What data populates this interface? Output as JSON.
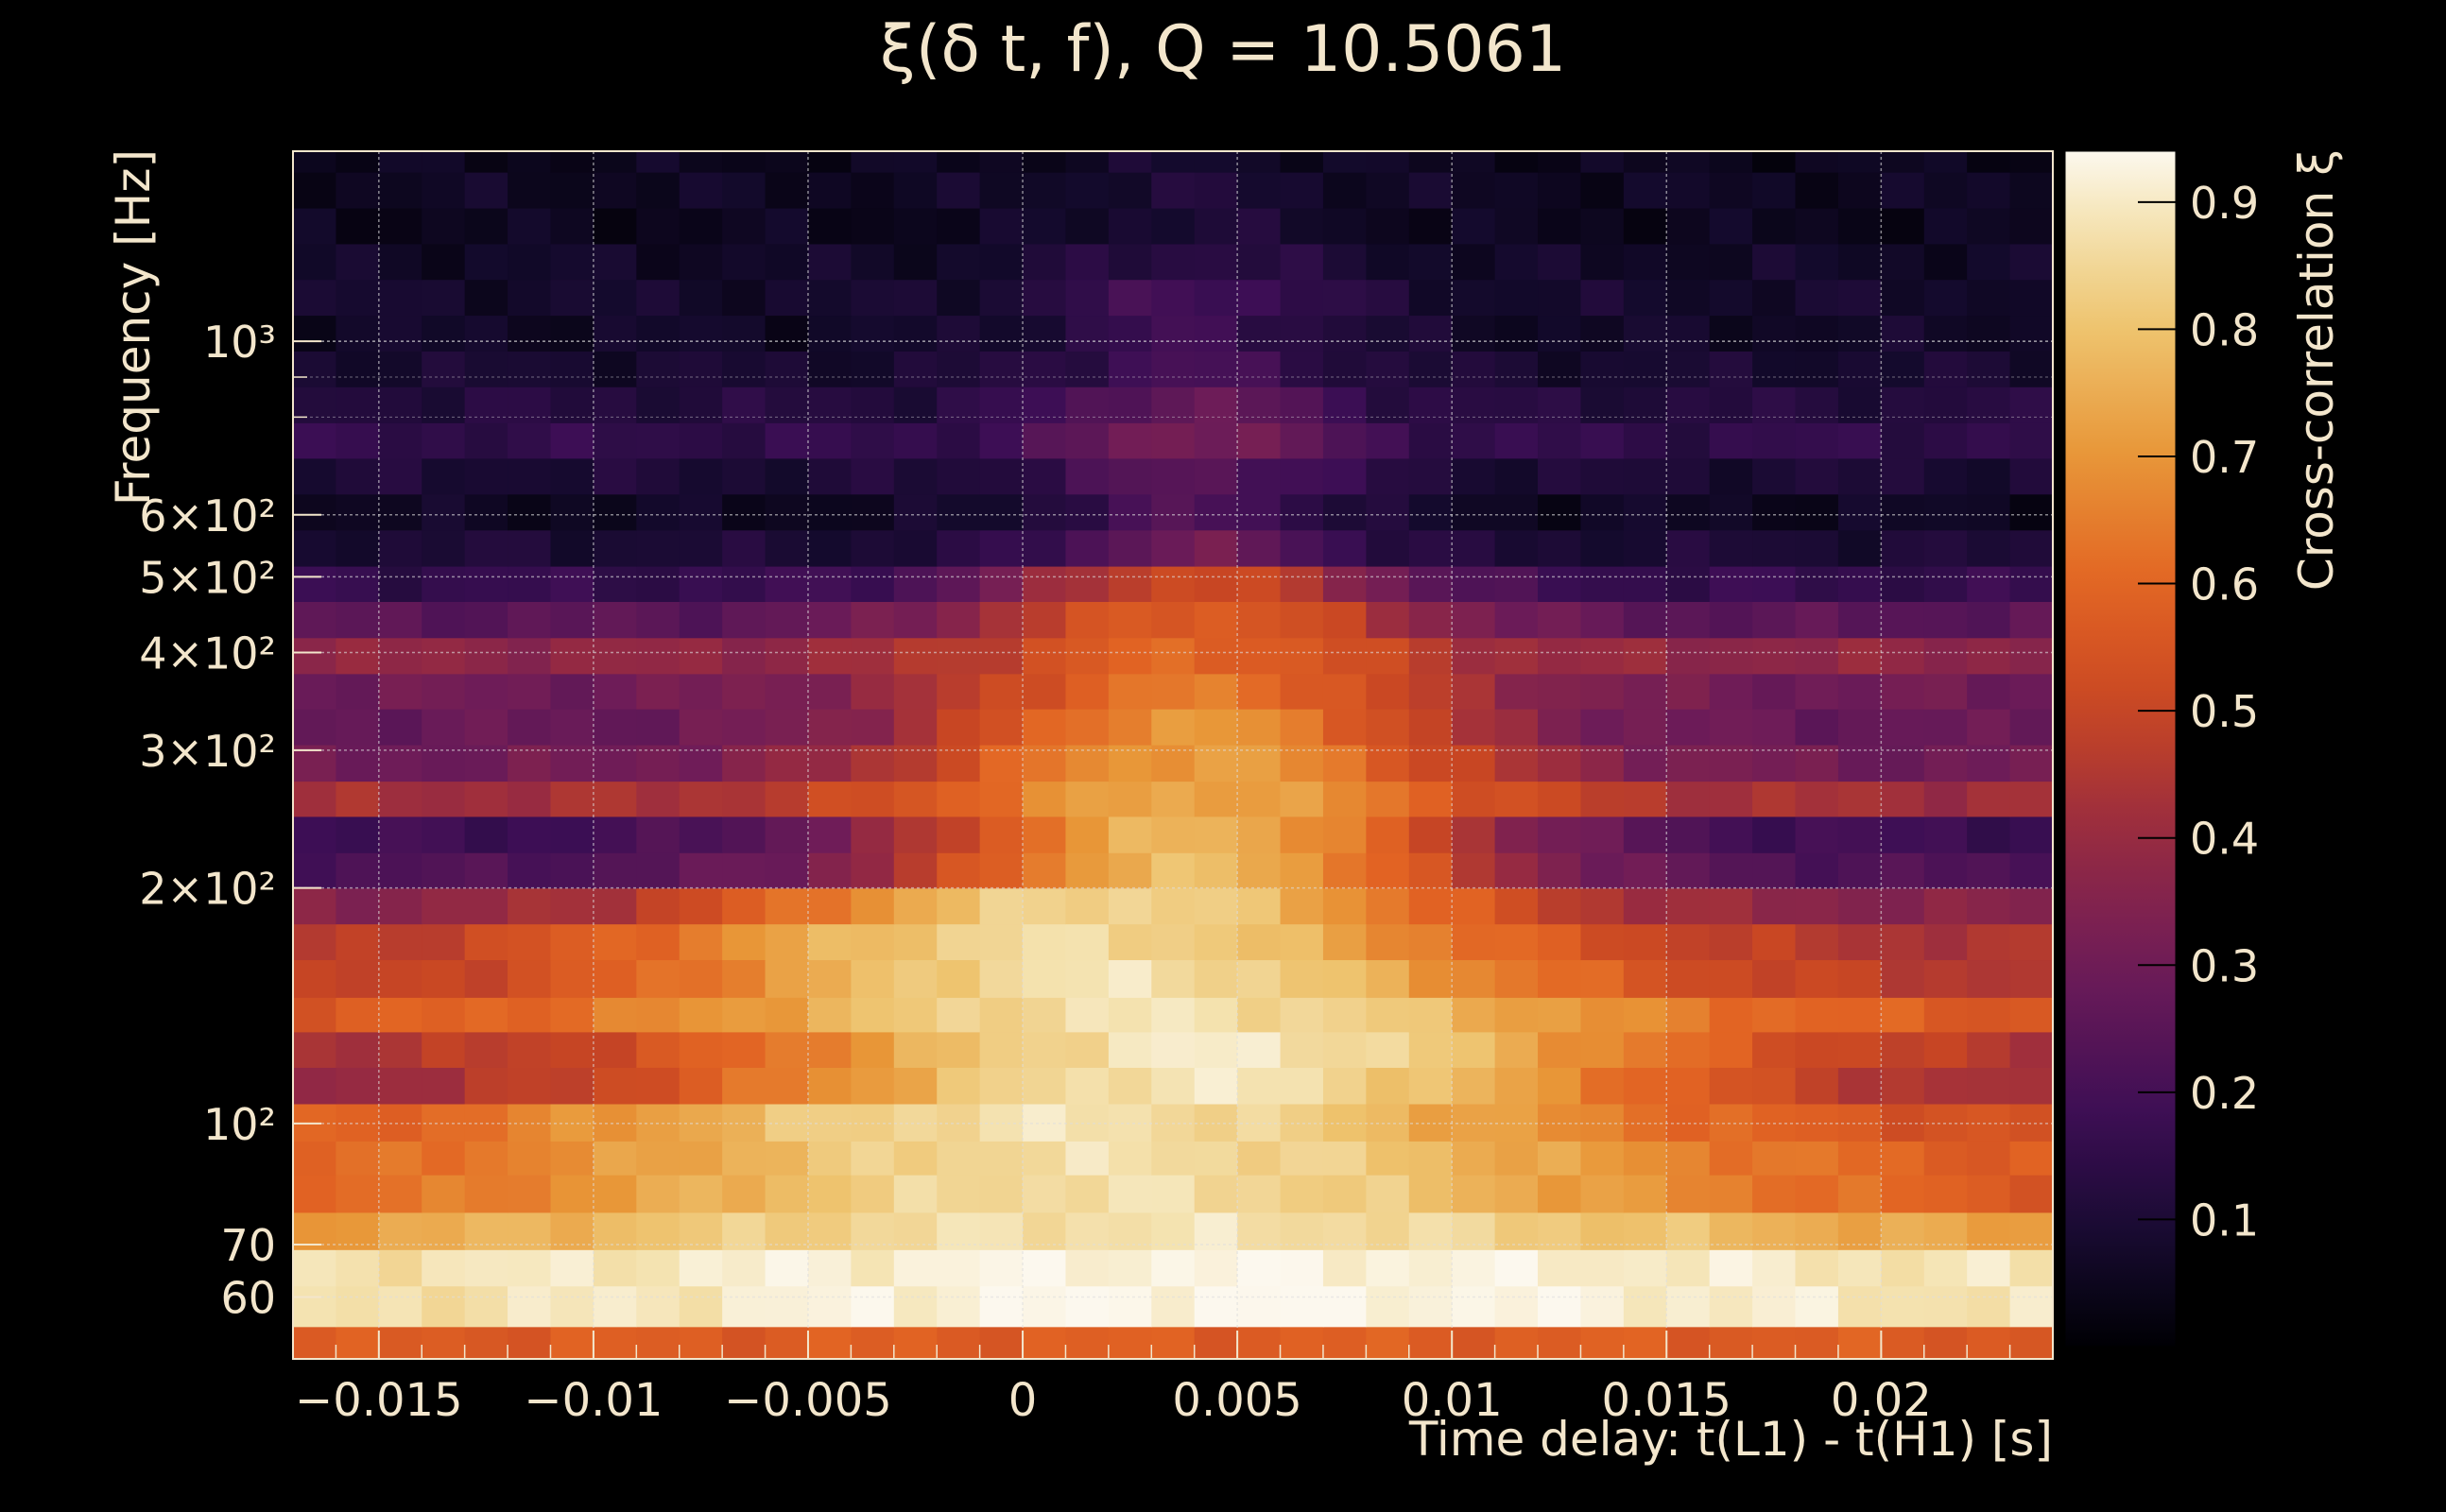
{
  "chart_data": {
    "type": "heatmap",
    "title": "ξ(δ t, f), Q = 10.5061",
    "xlabel": "Time delay: t(L1) - t(H1) [s]",
    "ylabel": "Frequency [Hz]",
    "colorbar_label": "Cross-correlation ξ",
    "x_scale": "linear",
    "y_scale": "log",
    "xlim": [
      -0.017,
      0.024
    ],
    "ylim": [
      50,
      1750
    ],
    "clim": [
      0.0,
      0.94
    ],
    "x_ticks": [
      {
        "value": -0.015,
        "label": "−0.015"
      },
      {
        "value": -0.01,
        "label": "−0.01"
      },
      {
        "value": -0.005,
        "label": "−0.005"
      },
      {
        "value": 0,
        "label": "0"
      },
      {
        "value": 0.005,
        "label": "0.005"
      },
      {
        "value": 0.01,
        "label": "0.01"
      },
      {
        "value": 0.015,
        "label": "0.015"
      },
      {
        "value": 0.02,
        "label": "0.02"
      }
    ],
    "y_ticks": [
      {
        "value": 60,
        "label": "60"
      },
      {
        "value": 70,
        "label": "70"
      },
      {
        "value": 100,
        "label": "10²"
      },
      {
        "value": 200,
        "label": "2×10²"
      },
      {
        "value": 300,
        "label": "3×10²"
      },
      {
        "value": 400,
        "label": "4×10²"
      },
      {
        "value": 500,
        "label": "5×10²"
      },
      {
        "value": 600,
        "label": "6×10²"
      },
      {
        "value": 1000,
        "label": "10³"
      }
    ],
    "colorbar_ticks": [
      {
        "value": 0.1,
        "label": "0.1"
      },
      {
        "value": 0.2,
        "label": "0.2"
      },
      {
        "value": 0.3,
        "label": "0.3"
      },
      {
        "value": 0.4,
        "label": "0.4"
      },
      {
        "value": 0.5,
        "label": "0.5"
      },
      {
        "value": 0.6,
        "label": "0.6"
      },
      {
        "value": 0.7,
        "label": "0.7"
      },
      {
        "value": 0.8,
        "label": "0.8"
      },
      {
        "value": 0.9,
        "label": "0.9"
      }
    ],
    "colormap": "inferno",
    "grid": true,
    "grid_color": "#dddddd",
    "axis_color": "#f3e6cc",
    "background": "#000000",
    "time_bins": {
      "start": -0.017,
      "step": 0.001,
      "count": 41
    },
    "rows": [
      {
        "f_low": 50,
        "f_high": 55,
        "base": 0.52,
        "peak": 0.58,
        "width": 0.03,
        "center": 0.004
      },
      {
        "f_low": 55,
        "f_high": 62,
        "base": 0.85,
        "peak": 0.94,
        "width": 0.012,
        "center": 0.005
      },
      {
        "f_low": 62,
        "f_high": 69,
        "base": 0.86,
        "peak": 0.93,
        "width": 0.012,
        "center": 0.004
      },
      {
        "f_low": 69,
        "f_high": 77,
        "base": 0.66,
        "peak": 0.88,
        "width": 0.012,
        "center": 0.003
      },
      {
        "f_low": 77,
        "f_high": 86,
        "base": 0.54,
        "peak": 0.87,
        "width": 0.01,
        "center": 0.002
      },
      {
        "f_low": 86,
        "f_high": 95,
        "base": 0.55,
        "peak": 0.87,
        "width": 0.0095,
        "center": 0.002
      },
      {
        "f_low": 95,
        "f_high": 106,
        "base": 0.52,
        "peak": 0.88,
        "width": 0.009,
        "center": 0.001
      },
      {
        "f_low": 106,
        "f_high": 118,
        "base": 0.37,
        "peak": 0.89,
        "width": 0.0085,
        "center": 0.004
      },
      {
        "f_low": 118,
        "f_high": 131,
        "base": 0.42,
        "peak": 0.9,
        "width": 0.008,
        "center": 0.0045
      },
      {
        "f_low": 131,
        "f_high": 145,
        "base": 0.55,
        "peak": 0.88,
        "width": 0.008,
        "center": 0.003
      },
      {
        "f_low": 145,
        "f_high": 162,
        "base": 0.45,
        "peak": 0.88,
        "width": 0.0075,
        "center": 0.002
      },
      {
        "f_low": 162,
        "f_high": 180,
        "base": 0.43,
        "peak": 0.86,
        "width": 0.0075,
        "center": 0.001
      },
      {
        "f_low": 180,
        "f_high": 200,
        "base": 0.35,
        "peak": 0.85,
        "width": 0.0065,
        "center": 0.002
      },
      {
        "f_low": 200,
        "f_high": 222,
        "base": 0.22,
        "peak": 0.78,
        "width": 0.005,
        "center": 0.004
      },
      {
        "f_low": 222,
        "f_high": 247,
        "base": 0.18,
        "peak": 0.77,
        "width": 0.005,
        "center": 0.004
      },
      {
        "f_low": 247,
        "f_high": 274,
        "base": 0.42,
        "peak": 0.74,
        "width": 0.005,
        "center": 0.004
      },
      {
        "f_low": 274,
        "f_high": 305,
        "base": 0.3,
        "peak": 0.72,
        "width": 0.005,
        "center": 0.004
      },
      {
        "f_low": 305,
        "f_high": 339,
        "base": 0.28,
        "peak": 0.7,
        "width": 0.0045,
        "center": 0.004
      },
      {
        "f_low": 339,
        "f_high": 376,
        "base": 0.3,
        "peak": 0.64,
        "width": 0.0045,
        "center": 0.004
      },
      {
        "f_low": 376,
        "f_high": 418,
        "base": 0.38,
        "peak": 0.6,
        "width": 0.004,
        "center": 0.004
      },
      {
        "f_low": 418,
        "f_high": 465,
        "base": 0.25,
        "peak": 0.58,
        "width": 0.004,
        "center": 0.004
      },
      {
        "f_low": 465,
        "f_high": 516,
        "base": 0.16,
        "peak": 0.52,
        "width": 0.0035,
        "center": 0.004
      },
      {
        "f_low": 516,
        "f_high": 574,
        "base": 0.1,
        "peak": 0.3,
        "width": 0.0025,
        "center": 0.004
      },
      {
        "f_low": 574,
        "f_high": 638,
        "base": 0.06,
        "peak": 0.22,
        "width": 0.0025,
        "center": 0.004
      },
      {
        "f_low": 638,
        "f_high": 709,
        "base": 0.1,
        "peak": 0.25,
        "width": 0.0025,
        "center": 0.004
      },
      {
        "f_low": 709,
        "f_high": 787,
        "base": 0.15,
        "peak": 0.33,
        "width": 0.0025,
        "center": 0.004
      },
      {
        "f_low": 787,
        "f_high": 875,
        "base": 0.12,
        "peak": 0.28,
        "width": 0.0025,
        "center": 0.004
      },
      {
        "f_low": 875,
        "f_high": 972,
        "base": 0.09,
        "peak": 0.2,
        "width": 0.0025,
        "center": 0.004
      },
      {
        "f_low": 972,
        "f_high": 1080,
        "base": 0.07,
        "peak": 0.18,
        "width": 0.0025,
        "center": 0.004
      },
      {
        "f_low": 1080,
        "f_high": 1200,
        "base": 0.08,
        "peak": 0.2,
        "width": 0.0025,
        "center": 0.004
      },
      {
        "f_low": 1200,
        "f_high": 1333,
        "base": 0.07,
        "peak": 0.14,
        "width": 0.0025,
        "center": 0.004
      },
      {
        "f_low": 1333,
        "f_high": 1481,
        "base": 0.05,
        "peak": 0.1,
        "width": 0.0025,
        "center": 0.004
      },
      {
        "f_low": 1481,
        "f_high": 1646,
        "base": 0.06,
        "peak": 0.1,
        "width": 0.0025,
        "center": 0.004
      },
      {
        "f_low": 1646,
        "f_high": 1750,
        "base": 0.05,
        "peak": 0.08,
        "width": 0.0025,
        "center": 0.004
      }
    ],
    "row_modulation": {
      "amplitude": 0.035
    },
    "band_sidelobe": {
      "fraction": 0.12
    }
  }
}
